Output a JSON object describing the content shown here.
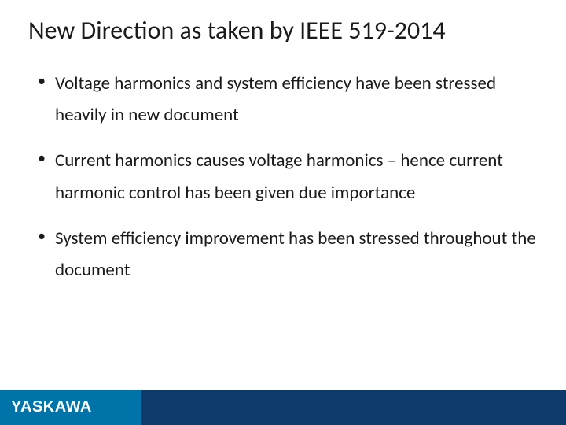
{
  "slide": {
    "title": "New Direction as taken by IEEE 519-2014",
    "bullets": [
      "Voltage harmonics and system efficiency have been stressed heavily in new document",
      "Current harmonics causes voltage harmonics – hence current harmonic control has been given due importance",
      "System efficiency improvement has been stressed throughout the document"
    ]
  },
  "footer": {
    "logo_text": "YASKAWA",
    "left_bg": "#0073a8",
    "right_bg": "#0d3a6b",
    "logo_color": "#ffffff"
  },
  "styling": {
    "background": "#ffffff",
    "title_fontsize": 32,
    "bullet_fontsize": 23,
    "text_color": "#1a1a1a",
    "font_family": "Calibri"
  }
}
